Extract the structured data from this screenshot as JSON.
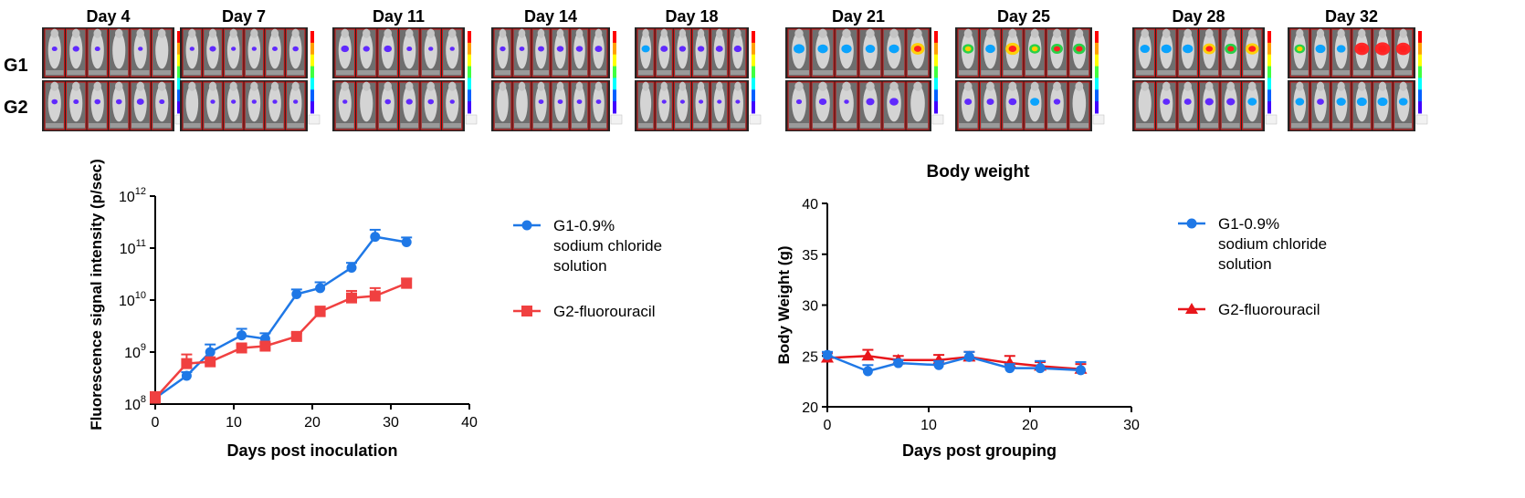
{
  "imaging": {
    "days": [
      "Day 4",
      "Day 7",
      "Day 11",
      "Day 14",
      "Day 18",
      "Day 21",
      "Day 25",
      "Day 28",
      "Day 32"
    ],
    "groups": [
      "G1",
      "G2"
    ],
    "g1_signal": [
      [
        0.15,
        0.25,
        0.15,
        0.0,
        0.1,
        0.0
      ],
      [
        0.1,
        0.25,
        0.1,
        0.1,
        0.15,
        0.2
      ],
      [
        0.35,
        0.25,
        0.35,
        0.15,
        0.1,
        0.1
      ],
      [
        0.2,
        0.15,
        0.25,
        0.3,
        0.3,
        0.35
      ],
      [
        0.45,
        0.35,
        0.3,
        0.3,
        0.35,
        0.4
      ],
      [
        0.55,
        0.5,
        0.5,
        0.45,
        0.5,
        0.75
      ],
      [
        0.6,
        0.5,
        0.85,
        0.6,
        0.65,
        0.7
      ],
      [
        0.5,
        0.55,
        0.55,
        0.75,
        0.7,
        0.8
      ],
      [
        0.6,
        0.55,
        0.45,
        0.95,
        1.0,
        0.95
      ]
    ],
    "g2_signal": [
      [
        0.2,
        0.15,
        0.2,
        0.2,
        0.3,
        0.15
      ],
      [
        0.0,
        0.1,
        0.1,
        0.1,
        0.1,
        0.1
      ],
      [
        0.1,
        0.0,
        0.2,
        0.25,
        0.2,
        0.1
      ],
      [
        0.0,
        0.0,
        0.15,
        0.15,
        0.15,
        0.15
      ],
      [
        0.0,
        0.1,
        0.1,
        0.1,
        0.1,
        0.1
      ],
      [
        0.15,
        0.3,
        0.1,
        0.35,
        0.4,
        0.0
      ],
      [
        0.3,
        0.3,
        0.35,
        0.45,
        0.25,
        0.0
      ],
      [
        0.0,
        0.3,
        0.3,
        0.4,
        0.4,
        0.45
      ],
      [
        0.45,
        0.3,
        0.5,
        0.55,
        0.55,
        0.45
      ]
    ]
  },
  "chart_data": [
    {
      "type": "line",
      "title": "",
      "xlabel": "Days post inoculation",
      "ylabel": "Fluorescence signal intensity (p/sec)",
      "yscale": "log",
      "xlim": [
        0,
        40
      ],
      "ylim": [
        100000000,
        1000000000000
      ],
      "xticks": [
        "0",
        "10",
        "20",
        "30",
        "40"
      ],
      "yticks": [
        "8",
        "9",
        "10",
        "11",
        "12"
      ],
      "ytick_base": "10",
      "legend_position": "right",
      "series": [
        {
          "name": "G1-0.9% sodium chloride solution",
          "legend_lines": [
            "G1-0.9%",
            "sodium chloride",
            "solution"
          ],
          "color": "#1f78e6",
          "marker": "circle",
          "x": [
            0,
            4,
            7,
            11,
            14,
            18,
            21,
            25,
            28,
            32
          ],
          "y": [
            130000000,
            350000000,
            1000000000,
            2100000000,
            1800000000,
            13000000000,
            17000000000,
            42000000000,
            165000000000,
            130000000000
          ],
          "err": [
            30000000,
            60000000,
            400000000,
            700000000,
            500000000,
            3000000000,
            5000000000,
            10000000000,
            60000000000,
            30000000000
          ]
        },
        {
          "name": "G2-fluorouracil",
          "legend_lines": [
            "G2-fluorouracil"
          ],
          "color": "#f04040",
          "marker": "square",
          "x": [
            0,
            4,
            7,
            11,
            14,
            18,
            21,
            25,
            28,
            32
          ],
          "y": [
            130000000,
            600000000,
            650000000,
            1200000000,
            1300000000,
            2000000000,
            6000000000,
            11000000000,
            12000000000,
            21000000000
          ],
          "err": [
            40000000,
            300000000,
            100000000,
            200000000,
            200000000,
            300000000,
            1500000000,
            4000000000,
            5000000000,
            5000000000
          ]
        }
      ]
    },
    {
      "type": "line",
      "title": "Body weight",
      "xlabel": "Days post grouping",
      "ylabel": "Body Weight (g)",
      "xlim": [
        0,
        30
      ],
      "ylim": [
        20,
        40
      ],
      "xticks": [
        "0",
        "10",
        "20",
        "30"
      ],
      "yticks": [
        "20",
        "25",
        "30",
        "35",
        "40"
      ],
      "legend_position": "right",
      "series": [
        {
          "name": "G1-0.9% sodium chloride solution",
          "legend_lines": [
            "G1-0.9%",
            "sodium chloride",
            "solution"
          ],
          "color": "#1f78e6",
          "marker": "circle",
          "x": [
            0,
            4,
            7,
            11,
            14,
            18,
            21,
            25
          ],
          "y": [
            25.1,
            23.5,
            24.3,
            24.1,
            24.9,
            23.8,
            23.8,
            23.6
          ],
          "err": [
            0.3,
            0.6,
            0.3,
            0.4,
            0.5,
            0.4,
            0.7,
            0.8
          ]
        },
        {
          "name": "G2-fluorouracil",
          "legend_lines": [
            "G2-fluorouracil"
          ],
          "color": "#e8161b",
          "marker": "triangle",
          "x": [
            0,
            4,
            7,
            11,
            14,
            18,
            21,
            25
          ],
          "y": [
            24.8,
            25.0,
            24.6,
            24.6,
            24.9,
            24.3,
            24.0,
            23.7
          ],
          "err": [
            0.5,
            0.6,
            0.4,
            0.5,
            0.5,
            0.7,
            0.4,
            0.5
          ]
        }
      ]
    }
  ]
}
